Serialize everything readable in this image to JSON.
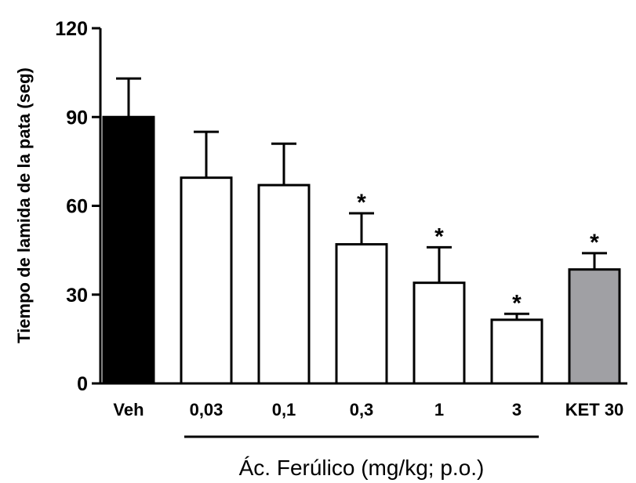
{
  "chart_data": {
    "type": "bar",
    "title": "",
    "xlabel": "",
    "ylabel": "Tiempo de lamida de la pata (seg)",
    "ylim": [
      0,
      120
    ],
    "yticks": [
      0,
      30,
      60,
      90,
      120
    ],
    "ytick_labels": [
      "0",
      "30",
      "60",
      "90",
      "120"
    ],
    "categories": [
      "Veh",
      "0,03",
      "0,1",
      "0,3",
      "1",
      "3",
      "KET 30"
    ],
    "values": [
      90,
      69.5,
      67,
      47,
      34,
      21.5,
      38.5
    ],
    "errors": [
      13,
      15.5,
      14,
      10.5,
      12,
      2,
      5.5
    ],
    "bar_colors": [
      "#000000",
      "#ffffff",
      "#ffffff",
      "#ffffff",
      "#ffffff",
      "#ffffff",
      "#a0a0a4"
    ],
    "significance": [
      "",
      "",
      "",
      "*",
      "*",
      "*",
      "*"
    ],
    "group_label": {
      "text": "Ác. Ferúlico (mg/kg; p.o.)",
      "from_category": 1,
      "to_category": 5
    },
    "grid": false,
    "legend": "none"
  }
}
